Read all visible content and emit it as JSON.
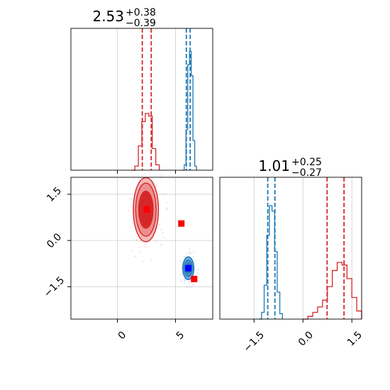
{
  "colors": {
    "red": "#d62728",
    "blue": "#1f77b4",
    "grid": "#cccccc",
    "axis": "#000000",
    "fill_red_dark": "#d62728",
    "fill_red_light": "#f2b8b8",
    "fill_blue": "#6fa8dc",
    "marker_red": "#ff0000",
    "marker_blue": "#0000ff"
  },
  "chart_data": [
    {
      "panel": "top-left",
      "type": "line",
      "title": {
        "value": "2.53",
        "plus": "+0.38",
        "minus": "−0.39"
      },
      "xlim": [
        -4,
        8.2
      ],
      "ylim": [
        0,
        1.05
      ],
      "xgrid": [
        0,
        5
      ],
      "show_x_ticklabels": false,
      "series": [
        {
          "color": "red",
          "kind": "step",
          "x": [
            1.2,
            1.5,
            1.8,
            2.1,
            2.4,
            2.7,
            3.0,
            3.3,
            3.6
          ],
          "y": [
            0.0,
            0.03,
            0.18,
            0.36,
            0.42,
            0.4,
            0.16,
            0.04,
            0.0
          ]
        },
        {
          "color": "blue",
          "kind": "step",
          "x": [
            5.6,
            5.75,
            5.9,
            6.05,
            6.2,
            6.35,
            6.5,
            6.65,
            6.8
          ],
          "y": [
            0.0,
            0.04,
            0.3,
            0.78,
            0.88,
            0.7,
            0.22,
            0.03,
            0.0
          ]
        }
      ],
      "vlines": [
        {
          "x": 2.14,
          "color": "red"
        },
        {
          "x": 2.91,
          "color": "red"
        },
        {
          "x": 5.93,
          "color": "blue"
        },
        {
          "x": 6.26,
          "color": "blue"
        }
      ]
    },
    {
      "panel": "bottom-left",
      "type": "scatter",
      "xlim": [
        -4,
        8.2
      ],
      "ylim": [
        -2.55,
        2.05
      ],
      "xticks": [
        "0",
        "5"
      ],
      "xtick_values": [
        0,
        5
      ],
      "yticks": [
        "−1.5",
        "0.0",
        "1.5"
      ],
      "ytick_values": [
        -1.5,
        0.0,
        1.5
      ],
      "contours": [
        {
          "color": "red",
          "cx": 2.45,
          "cy": 1.0,
          "levels": [
            [
              0.62,
              0.6
            ],
            [
              0.88,
              0.86
            ],
            [
              1.08,
              1.04
            ]
          ]
        },
        {
          "color": "blue",
          "cx": 6.1,
          "cy": -0.9,
          "levels": [
            [
              0.22,
              0.15
            ],
            [
              0.35,
              0.26
            ],
            [
              0.48,
              0.37
            ]
          ]
        }
      ],
      "markers": [
        {
          "x": 2.53,
          "y": 1.01,
          "color": "marker_red"
        },
        {
          "x": 5.5,
          "y": 0.55,
          "color": "marker_red"
        },
        {
          "x": 6.6,
          "y": -1.25,
          "color": "marker_red"
        },
        {
          "x": 6.1,
          "y": -0.9,
          "color": "marker_blue"
        }
      ]
    },
    {
      "panel": "bottom-right",
      "type": "line",
      "title": {
        "value": "1.01",
        "plus": "+0.25",
        "minus": "−0.27"
      },
      "xlim": [
        -2.55,
        1.8
      ],
      "ylim": [
        0,
        1.05
      ],
      "xgrid": [
        -1.5,
        0.0,
        1.5
      ],
      "xticks": [
        "−1.5",
        "0.0",
        "1.5"
      ],
      "xtick_values": [
        -1.5,
        0.0,
        1.5
      ],
      "series": [
        {
          "color": "blue",
          "kind": "step",
          "x": [
            -1.35,
            -1.27,
            -1.19,
            -1.11,
            -1.03,
            -0.95,
            -0.87,
            -0.79,
            -0.71,
            -0.63
          ],
          "y": [
            0.0,
            0.05,
            0.25,
            0.62,
            0.84,
            0.8,
            0.5,
            0.2,
            0.04,
            0.0
          ]
        },
        {
          "color": "red",
          "kind": "step",
          "x": [
            0.0,
            0.15,
            0.3,
            0.45,
            0.6,
            0.75,
            0.9,
            1.05,
            1.2,
            1.35,
            1.5,
            1.65,
            1.8
          ],
          "y": [
            0.0,
            0.02,
            0.05,
            0.09,
            0.14,
            0.24,
            0.36,
            0.42,
            0.4,
            0.3,
            0.16,
            0.06,
            0.01
          ]
        }
      ],
      "vlines": [
        {
          "x": -1.08,
          "color": "blue"
        },
        {
          "x": -0.86,
          "color": "blue"
        },
        {
          "x": 0.74,
          "color": "red"
        },
        {
          "x": 1.26,
          "color": "red"
        }
      ]
    }
  ]
}
